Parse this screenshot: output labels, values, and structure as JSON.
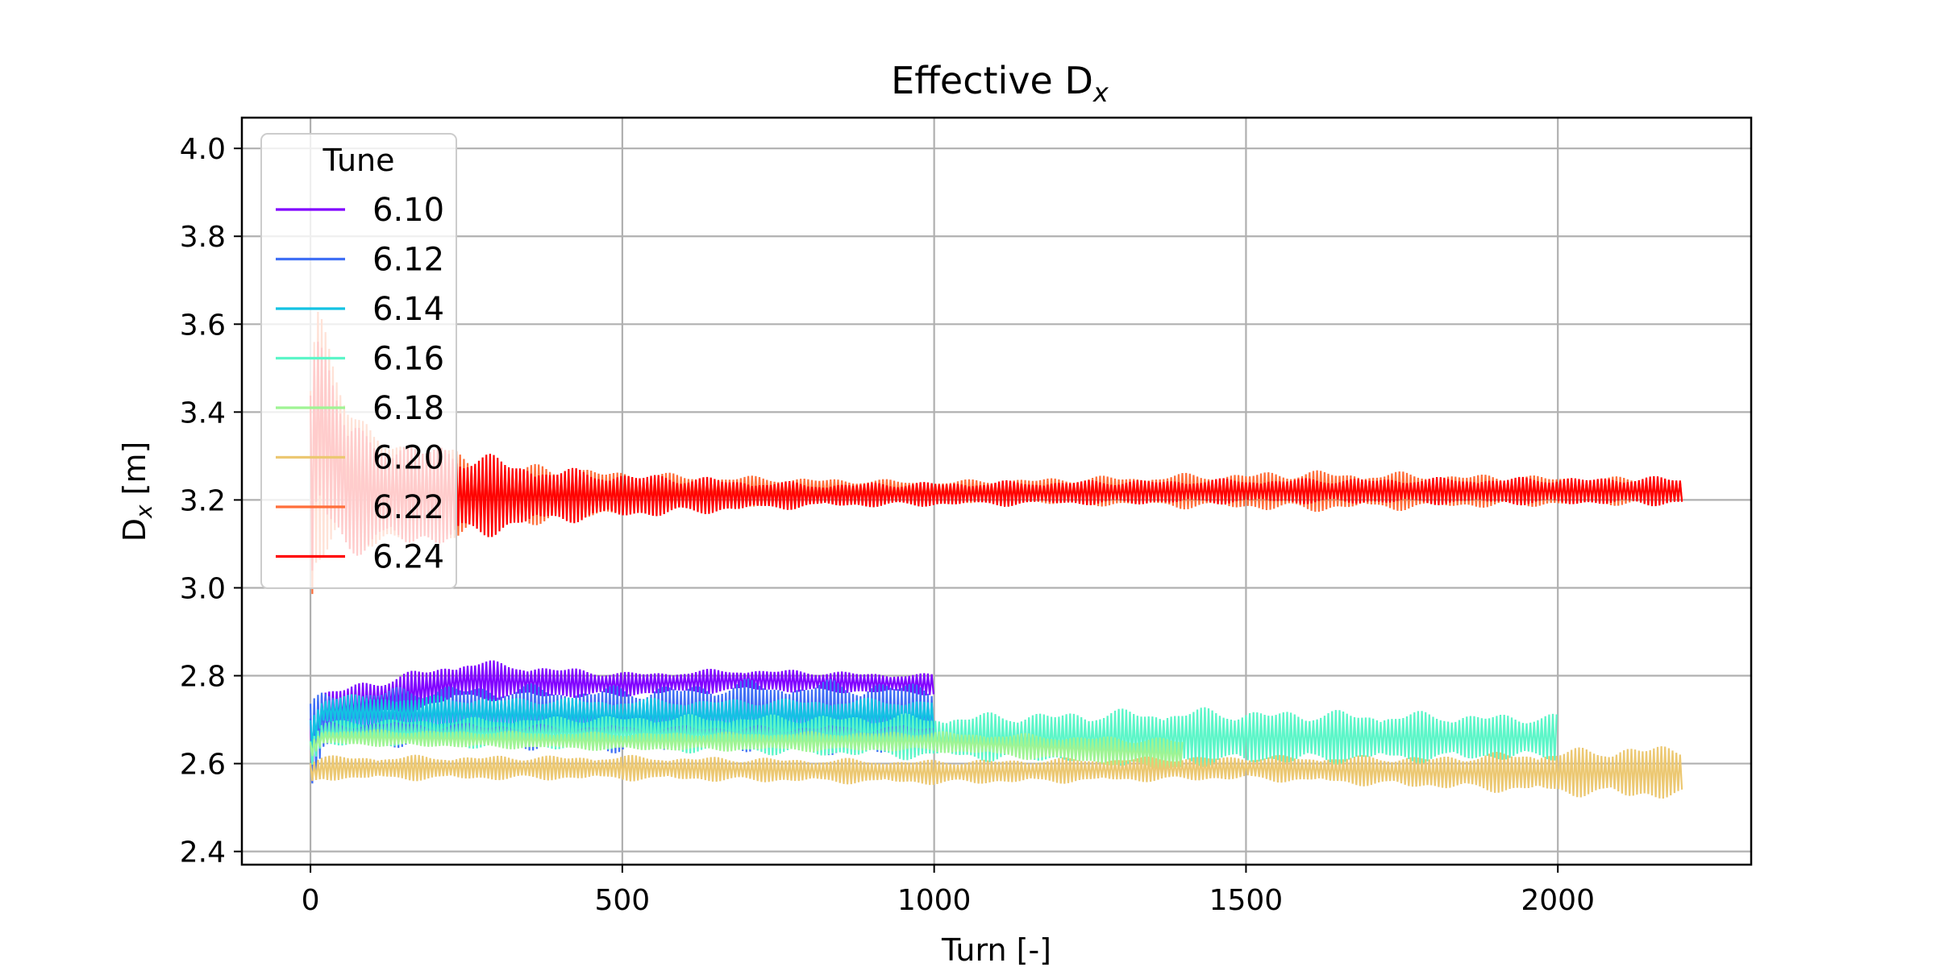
{
  "chart_data": {
    "type": "line",
    "title_main": "Effective D",
    "title_sub": "x",
    "xlabel": "Turn [-]",
    "ylabel_main": "D",
    "ylabel_sub": "x",
    "ylabel_unit": " [m]",
    "xlim": [
      -110,
      2310
    ],
    "ylim": [
      2.37,
      4.07
    ],
    "xticks": [
      0,
      500,
      1000,
      1500,
      2000
    ],
    "xtick_labels": [
      "0",
      "500",
      "1000",
      "1500",
      "2000"
    ],
    "yticks": [
      2.4,
      2.6,
      2.8,
      3.0,
      3.2,
      3.4,
      3.6,
      3.8,
      4.0
    ],
    "ytick_labels": [
      "2.4",
      "2.6",
      "2.8",
      "3.0",
      "3.2",
      "3.4",
      "3.6",
      "3.8",
      "4.0"
    ],
    "grid": true,
    "legend": {
      "title": "Tune",
      "placement": "upper-left"
    },
    "series": [
      {
        "name": "6.10",
        "color": "#8000ff",
        "x_end": 1000,
        "center": [
          [
            0,
            2.62
          ],
          [
            20,
            2.72
          ],
          [
            250,
            2.79
          ],
          [
            500,
            2.78
          ],
          [
            700,
            2.79
          ],
          [
            1000,
            2.78
          ]
        ],
        "amplitude": [
          [
            0,
            0.3
          ],
          [
            20,
            0.1
          ],
          [
            250,
            0.1
          ],
          [
            500,
            0.06
          ],
          [
            1000,
            0.05
          ]
        ]
      },
      {
        "name": "6.12",
        "color": "#3f6ff5",
        "x_end": 1000,
        "center": [
          [
            0,
            2.64
          ],
          [
            20,
            2.7
          ],
          [
            250,
            2.71
          ],
          [
            500,
            2.7
          ],
          [
            700,
            2.71
          ],
          [
            1000,
            2.7
          ]
        ],
        "amplitude": [
          [
            0,
            0.2
          ],
          [
            20,
            0.14
          ],
          [
            500,
            0.16
          ],
          [
            900,
            0.18
          ],
          [
            1000,
            0.19
          ]
        ]
      },
      {
        "name": "6.14",
        "color": "#13c2e3",
        "x_end": 1000,
        "center": [
          [
            0,
            2.66
          ],
          [
            20,
            2.72
          ],
          [
            500,
            2.71
          ],
          [
            1000,
            2.71
          ]
        ],
        "amplitude": [
          [
            0,
            0.1
          ],
          [
            20,
            0.08
          ],
          [
            1000,
            0.08
          ]
        ]
      },
      {
        "name": "6.16",
        "color": "#5cf6c8",
        "x_end": 2000,
        "center": [
          [
            0,
            2.62
          ],
          [
            20,
            2.67
          ],
          [
            500,
            2.67
          ],
          [
            1000,
            2.66
          ],
          [
            1400,
            2.66
          ],
          [
            2000,
            2.66
          ]
        ],
        "amplitude": [
          [
            0,
            0.08
          ],
          [
            20,
            0.06
          ],
          [
            1000,
            0.11
          ],
          [
            1400,
            0.14
          ],
          [
            2000,
            0.11
          ]
        ]
      },
      {
        "name": "6.18",
        "color": "#9ff494",
        "x_end": 1400,
        "center": [
          [
            0,
            2.63
          ],
          [
            20,
            2.66
          ],
          [
            500,
            2.65
          ],
          [
            1000,
            2.65
          ],
          [
            1400,
            2.62
          ]
        ],
        "amplitude": [
          [
            0,
            0.05
          ],
          [
            20,
            0.04
          ],
          [
            1000,
            0.05
          ],
          [
            1400,
            0.08
          ]
        ]
      },
      {
        "name": "6.20",
        "color": "#ecc872",
        "x_end": 2200,
        "center": [
          [
            0,
            2.58
          ],
          [
            20,
            2.59
          ],
          [
            500,
            2.59
          ],
          [
            1000,
            2.58
          ],
          [
            1500,
            2.59
          ],
          [
            1800,
            2.58
          ],
          [
            2200,
            2.58
          ]
        ],
        "amplitude": [
          [
            0,
            0.07
          ],
          [
            20,
            0.06
          ],
          [
            1000,
            0.06
          ],
          [
            1500,
            0.06
          ],
          [
            1800,
            0.08
          ],
          [
            2200,
            0.14
          ]
        ]
      },
      {
        "name": "6.22",
        "color": "#ff6e3a",
        "x_end": 2200,
        "center": [
          [
            0,
            3.2
          ],
          [
            10,
            3.35
          ],
          [
            100,
            3.22
          ],
          [
            300,
            3.21
          ],
          [
            600,
            3.22
          ],
          [
            1000,
            3.22
          ],
          [
            1600,
            3.22
          ],
          [
            2200,
            3.22
          ]
        ],
        "amplitude": [
          [
            0,
            0.6
          ],
          [
            10,
            0.6
          ],
          [
            100,
            0.28
          ],
          [
            300,
            0.16
          ],
          [
            600,
            0.08
          ],
          [
            1000,
            0.05
          ],
          [
            1600,
            0.1
          ],
          [
            2200,
            0.06
          ]
        ]
      },
      {
        "name": "6.24",
        "color": "#ff0000",
        "x_end": 2200,
        "center": [
          [
            0,
            3.2
          ],
          [
            10,
            3.4
          ],
          [
            60,
            3.22
          ],
          [
            200,
            3.21
          ],
          [
            400,
            3.21
          ],
          [
            800,
            3.21
          ],
          [
            1500,
            3.22
          ],
          [
            2200,
            3.22
          ]
        ],
        "amplitude": [
          [
            0,
            0.7
          ],
          [
            10,
            0.62
          ],
          [
            60,
            0.3
          ],
          [
            200,
            0.25
          ],
          [
            400,
            0.13
          ],
          [
            800,
            0.06
          ],
          [
            1500,
            0.06
          ],
          [
            2200,
            0.07
          ]
        ]
      }
    ]
  }
}
